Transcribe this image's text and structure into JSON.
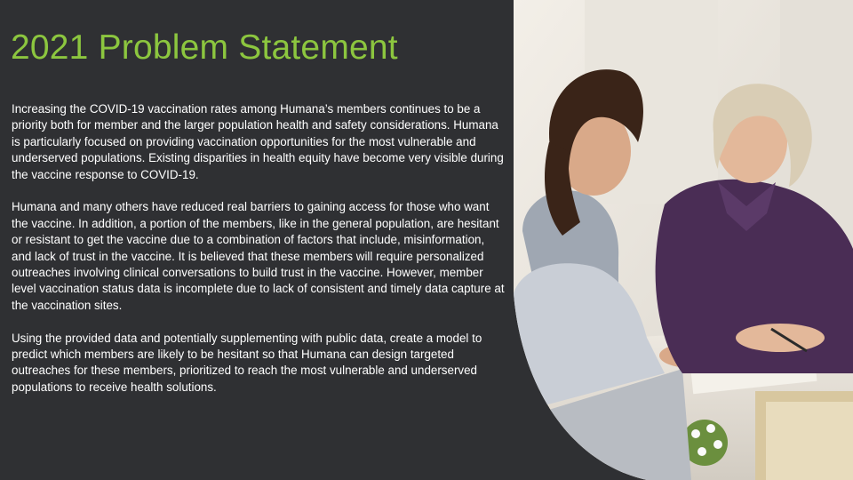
{
  "slide": {
    "title": "2021 Problem Statement",
    "paragraphs": [
      "Increasing the COVID-19 vaccination rates among Humana’s members continues to be a priority both for member and the larger population health and safety considerations. Humana is particularly focused on providing vaccination opportunities for the most vulnerable and underserved populations. Existing disparities in health equity have become very visible during the vaccine response to COVID-19.",
      "Humana and many others have reduced real barriers to gaining access for those who want the vaccine. In addition, a portion of the members, like in the general population, are hesitant or resistant to get the vaccine due to a combination of factors that include, misinformation, and lack of trust in the vaccine. It is believed that these members will require personalized outreaches involving clinical conversations to build trust in the vaccine. However, member level vaccination status data is incomplete due to lack of consistent and timely data capture at the vaccination sites.",
      "Using the provided data and potentially supplementing with public data, create a model to predict which members are likely to be hesitant so that Humana can design targeted outreaches for these members, prioritized to reach the most vulnerable and underserved populations to receive health solutions."
    ]
  },
  "colors": {
    "background": "#2f3033",
    "title": "#8cc63f",
    "text": "#ffffff"
  }
}
